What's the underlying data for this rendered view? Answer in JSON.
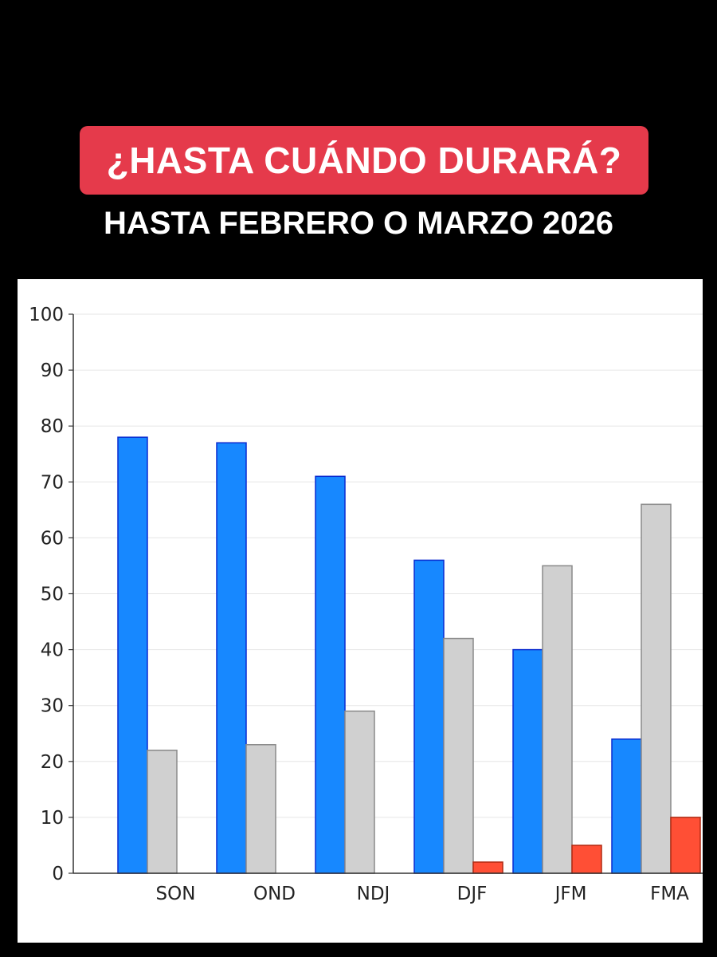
{
  "header": {
    "question": "¿HASTA CUÁNDO DURARÁ?",
    "answer": "HASTA FEBRERO O MARZO 2026"
  },
  "colors": {
    "badge": "#e53a4b",
    "series": [
      "#1788ff",
      "#d0d0d0",
      "#ff4f35"
    ]
  },
  "chart_data": {
    "type": "bar",
    "categories": [
      "SON",
      "OND",
      "NDJ",
      "DJF",
      "JFM",
      "FMA"
    ],
    "series": [
      {
        "values": [
          78,
          77,
          71,
          56,
          40,
          24
        ]
      },
      {
        "values": [
          22,
          23,
          29,
          42,
          55,
          66
        ]
      },
      {
        "values": [
          0,
          0,
          0,
          2,
          5,
          10
        ]
      }
    ],
    "ylim": [
      0,
      100
    ],
    "yticks": [
      "0",
      "10",
      "20",
      "30",
      "40",
      "50",
      "60",
      "70",
      "80",
      "90",
      "100"
    ],
    "grid": true,
    "legend": "none"
  }
}
